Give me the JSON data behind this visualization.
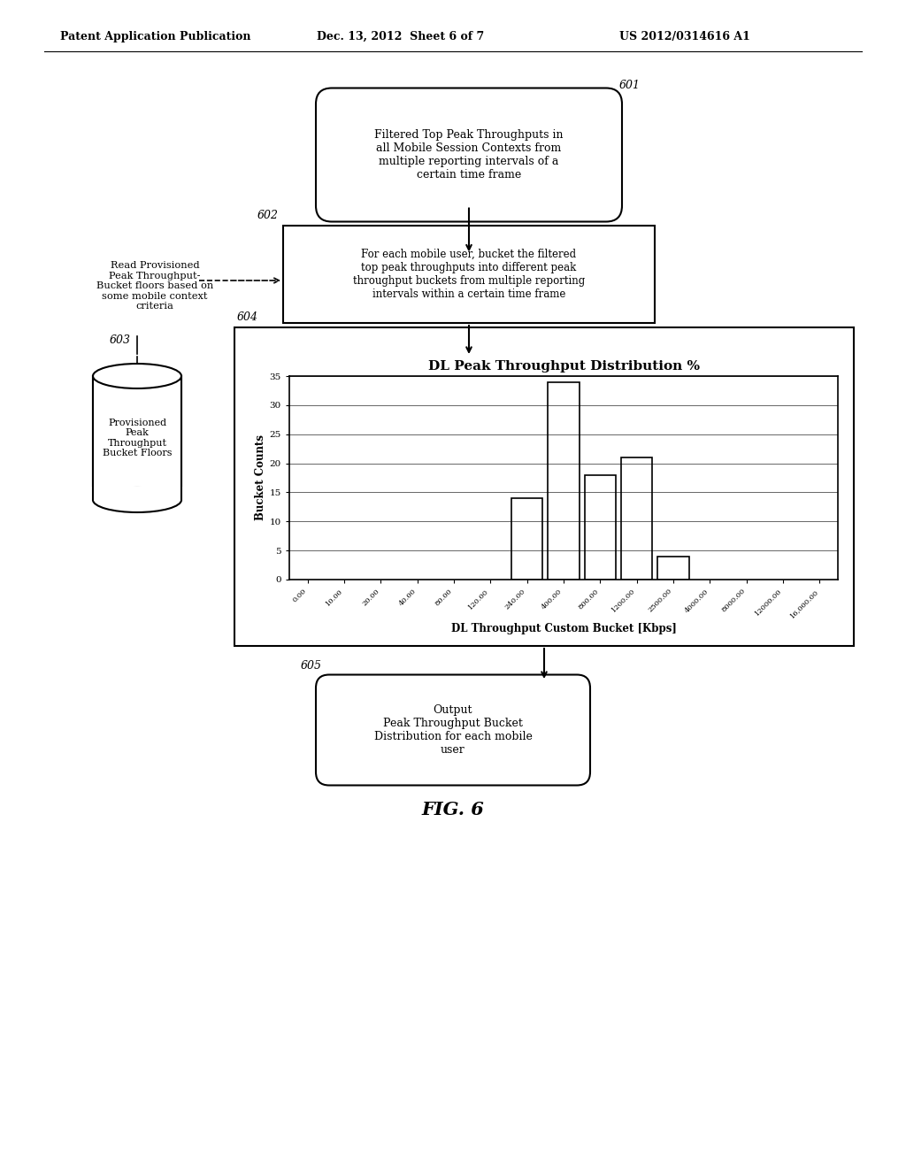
{
  "background_color": "#ffffff",
  "header_left": "Patent Application Publication",
  "header_center": "Dec. 13, 2012  Sheet 6 of 7",
  "header_right": "US 2012/0314616 A1",
  "figure_label": "FIG. 6",
  "box601_text": "Filtered Top Peak Throughputs in\nall Mobile Session Contexts from\nmultiple reporting intervals of a\ncertain time frame",
  "box601_label": "601",
  "box602_text": "For each mobile user, bucket the filtered\ntop peak throughputs into different peak\nthroughput buckets from multiple reporting\nintervals within a certain time frame",
  "box602_label": "602",
  "box603_label": "603",
  "cylinder_text": "Provisioned\nPeak\nThroughput\nBucket Floors",
  "left_note_text": "Read Provisioned\nPeak Throughput-\nBucket floors based on\nsome mobile context\ncriteria",
  "box604_label": "604",
  "chart_title": "DL Peak Throughput Distribution %",
  "chart_xlabel": "DL Throughput Custom Bucket [Kbps]",
  "chart_ylabel": "Bucket Counts",
  "chart_ylim": [
    0,
    35
  ],
  "chart_yticks": [
    0,
    5,
    10,
    15,
    20,
    25,
    30,
    35
  ],
  "chart_xtick_labels": [
    "0.00",
    "10.00",
    "20.00",
    "40.00",
    "80.00",
    "120.00",
    "240.00",
    "400.00",
    "800.00",
    "1200.00",
    "2500.00",
    "4000.00",
    "8000.00",
    "12000.00",
    "16,000.00"
  ],
  "chart_bar_positions": [
    6,
    7,
    8,
    9,
    10
  ],
  "chart_bar_heights": [
    14,
    34,
    18,
    21,
    4
  ],
  "box605_text": "Output\nPeak Throughput Bucket\nDistribution for each mobile\nuser",
  "box605_label": "605"
}
